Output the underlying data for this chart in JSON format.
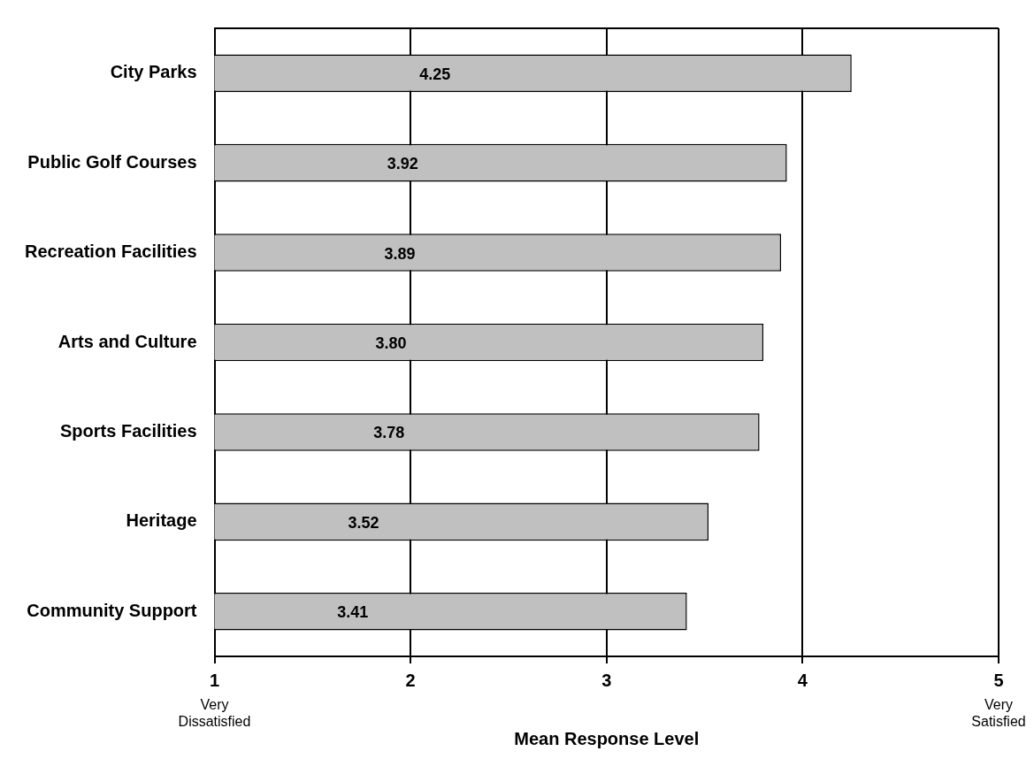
{
  "chart_data": {
    "type": "bar",
    "orientation": "horizontal",
    "xlabel": "Mean Response Level",
    "categories": [
      "City Parks",
      "Public Golf Courses",
      "Recreation Facilities",
      "Arts and Culture",
      "Sports Facilities",
      "Heritage",
      "Community Support"
    ],
    "values": [
      4.25,
      3.92,
      3.89,
      3.8,
      3.78,
      3.52,
      3.41
    ],
    "value_labels": [
      "4.25",
      "3.92",
      "3.89",
      "3.80",
      "3.78",
      "3.52",
      "3.41"
    ],
    "color": "#c0c0c0",
    "xlim": [
      1,
      5
    ],
    "xticks": [
      1,
      2,
      3,
      4,
      5
    ],
    "grid": "x",
    "legend": false,
    "annotations": [
      "Very Dissatisfied",
      "Very Satisfied"
    ]
  }
}
